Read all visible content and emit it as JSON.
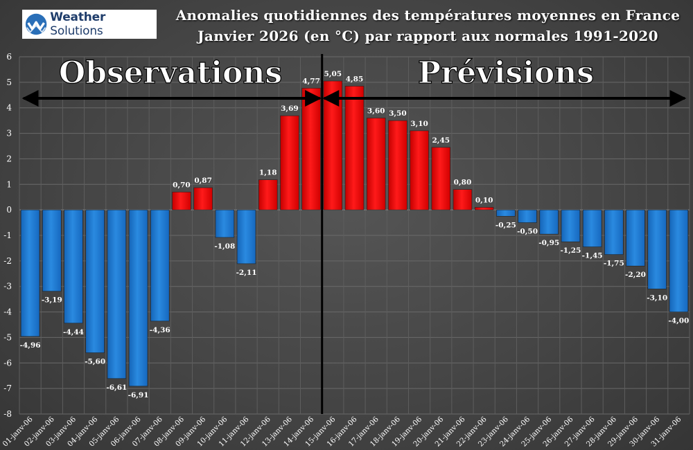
{
  "logo": {
    "brand_bold": "Weather",
    "brand_light": "Solutions"
  },
  "title": {
    "line1": "Anomalies quotidiennes des températures moyennes en France",
    "line2": "Janvier 2026 (en °C) par rapport aux normales 1991-2020"
  },
  "annotations": {
    "left": "Observations",
    "right": "Prévisions"
  },
  "colors": {
    "positive": "#ff0000",
    "negative": "#1e7fd6",
    "background": "#474747"
  },
  "chart_data": {
    "type": "bar",
    "categories": [
      "01-janv-06",
      "02-janv-06",
      "03-janv-06",
      "04-janv-06",
      "05-janv-06",
      "06-janv-06",
      "07-janv-06",
      "08-janv-06",
      "09-janv-06",
      "10-janv-06",
      "11-janv-06",
      "12-janv-06",
      "13-janv-06",
      "14-janv-06",
      "15-janv-06",
      "16-janv-06",
      "17-janv-06",
      "18-janv-06",
      "19-janv-06",
      "20-janv-06",
      "21-janv-06",
      "22-janv-06",
      "23-janv-06",
      "24-janv-06",
      "25-janv-06",
      "26-janv-06",
      "27-janv-06",
      "28-janv-06",
      "29-janv-06",
      "30-janv-06",
      "31-janv-06"
    ],
    "values": [
      -4.96,
      -3.19,
      -4.44,
      -5.6,
      -6.61,
      -6.91,
      -4.36,
      0.7,
      0.87,
      -1.08,
      -2.11,
      1.18,
      3.69,
      4.77,
      5.05,
      4.85,
      3.6,
      3.5,
      3.1,
      2.45,
      0.8,
      0.1,
      -0.25,
      -0.5,
      -0.95,
      -1.25,
      -1.45,
      -1.75,
      -2.2,
      -3.1,
      -4.0
    ],
    "labels": [
      "-4,96",
      "-3,19",
      "-4,44",
      "-5,60",
      "-6,61",
      "-6,91",
      "-4,36",
      "0,70",
      "0,87",
      "-1,08",
      "-2,11",
      "1,18",
      "3,69",
      "4,77",
      "5,05",
      "4,85",
      "3,60",
      "3,50",
      "3,10",
      "2,45",
      "0,80",
      "0,10",
      "-0,25",
      "-0,50",
      "-0,95",
      "-1,25",
      "-1,45",
      "-1,75",
      "-2,20",
      "-3,10",
      "-4,00"
    ],
    "ylim": [
      -8,
      6
    ],
    "yticks": [
      6,
      5,
      4,
      3,
      2,
      1,
      0,
      -1,
      -2,
      -3,
      -4,
      -5,
      -6,
      -7,
      -8
    ],
    "grid": true,
    "divider_between": [
      "14-janv-06",
      "15-janv-06"
    ]
  }
}
